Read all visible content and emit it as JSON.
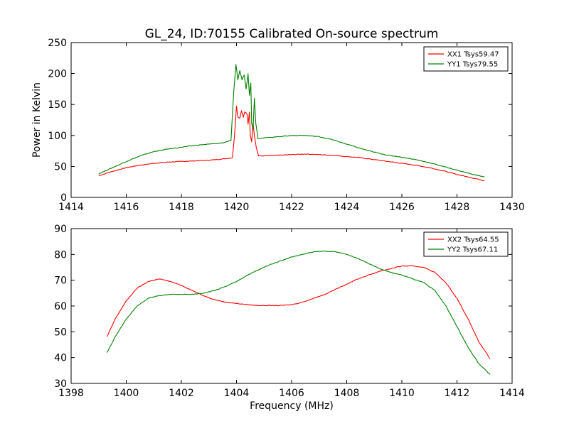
{
  "figure": {
    "title": "GL_24, ID:70155 Calibrated On-source spectrum"
  },
  "chart_data": [
    {
      "type": "line",
      "title": "GL_24, ID:70155 Calibrated On-source spectrum",
      "xlabel": "",
      "ylabel": "Power in Kelvin",
      "xlim": [
        1414,
        1430
      ],
      "ylim": [
        0,
        250
      ],
      "xticks": [
        1414,
        1416,
        1418,
        1420,
        1422,
        1424,
        1426,
        1428,
        1430
      ],
      "yticks": [
        0,
        50,
        100,
        150,
        200,
        250
      ],
      "grid": false,
      "legend_position": "top-right",
      "series": [
        {
          "name": "XX1 Tsys59.47",
          "color": "#ff0000",
          "x": [
            1415.0,
            1415.5,
            1416.0,
            1416.5,
            1417.0,
            1417.5,
            1418.0,
            1418.5,
            1419.0,
            1419.5,
            1419.85,
            1419.93,
            1420.0,
            1420.05,
            1420.12,
            1420.18,
            1420.25,
            1420.3,
            1420.38,
            1420.42,
            1420.47,
            1420.5,
            1420.55,
            1420.6,
            1420.65,
            1420.72,
            1420.8,
            1421.0,
            1421.5,
            1422.0,
            1422.5,
            1423.0,
            1423.5,
            1424.0,
            1424.5,
            1425.0,
            1425.5,
            1426.0,
            1426.5,
            1427.0,
            1427.5,
            1428.0,
            1428.5,
            1429.0
          ],
          "y": [
            35,
            42,
            48,
            52,
            55,
            57,
            58,
            59,
            60,
            62,
            64,
            100,
            148,
            130,
            128,
            140,
            130,
            138,
            135,
            118,
            138,
            100,
            90,
            120,
            100,
            80,
            67,
            67,
            68,
            69,
            70,
            69,
            68,
            66,
            64,
            61,
            58,
            55,
            52,
            48,
            43,
            37,
            32,
            27
          ]
        },
        {
          "name": "YY1 Tsys79.55",
          "color": "#008000",
          "x": [
            1415.0,
            1415.5,
            1416.0,
            1416.5,
            1417.0,
            1417.5,
            1418.0,
            1418.5,
            1419.0,
            1419.5,
            1419.8,
            1419.9,
            1419.98,
            1420.05,
            1420.12,
            1420.2,
            1420.28,
            1420.35,
            1420.42,
            1420.47,
            1420.52,
            1420.55,
            1420.6,
            1420.65,
            1420.7,
            1420.78,
            1421.0,
            1421.5,
            1422.0,
            1422.5,
            1423.0,
            1423.5,
            1424.0,
            1424.5,
            1425.0,
            1425.5,
            1426.0,
            1426.5,
            1427.0,
            1427.5,
            1428.0,
            1428.5,
            1429.0
          ],
          "y": [
            38,
            48,
            58,
            67,
            74,
            78,
            81,
            84,
            86,
            88,
            92,
            170,
            215,
            190,
            205,
            190,
            198,
            175,
            200,
            165,
            185,
            120,
            110,
            160,
            120,
            95,
            96,
            98,
            100,
            100,
            98,
            93,
            86,
            79,
            73,
            68,
            65,
            61,
            56,
            50,
            44,
            38,
            33
          ]
        }
      ]
    },
    {
      "type": "line",
      "title": "",
      "xlabel": "Frequency (MHz)",
      "ylabel": "",
      "xlim": [
        1398,
        1414
      ],
      "ylim": [
        30,
        90
      ],
      "xticks": [
        1398,
        1400,
        1402,
        1404,
        1406,
        1408,
        1410,
        1412,
        1414
      ],
      "yticks": [
        30,
        40,
        50,
        60,
        70,
        80,
        90
      ],
      "grid": false,
      "legend_position": "top-right",
      "series": [
        {
          "name": "XX2 Tsys64.55",
          "color": "#ff0000",
          "x": [
            1399.3,
            1399.6,
            1400.0,
            1400.4,
            1400.8,
            1401.2,
            1401.6,
            1402.0,
            1402.4,
            1402.8,
            1403.2,
            1403.6,
            1404.0,
            1404.4,
            1404.8,
            1405.2,
            1405.6,
            1406.0,
            1406.4,
            1406.8,
            1407.2,
            1407.6,
            1408.0,
            1408.4,
            1408.8,
            1409.2,
            1409.6,
            1410.0,
            1410.4,
            1410.8,
            1411.2,
            1411.6,
            1412.0,
            1412.4,
            1412.8,
            1413.2
          ],
          "y": [
            48,
            55,
            62,
            67,
            69.5,
            70.5,
            69.5,
            68,
            66,
            64,
            62.5,
            61.5,
            61,
            60.5,
            60.2,
            60.2,
            60.2,
            60.5,
            61.5,
            63,
            64.5,
            66.5,
            68.5,
            70.5,
            72,
            73.5,
            74.5,
            75.5,
            75.5,
            75,
            73,
            69,
            63,
            55,
            46,
            39.5
          ]
        },
        {
          "name": "YY2 Tsys67.11",
          "color": "#008000",
          "x": [
            1399.3,
            1399.6,
            1400.0,
            1400.4,
            1400.8,
            1401.2,
            1401.6,
            1402.0,
            1402.4,
            1402.8,
            1403.2,
            1403.6,
            1404.0,
            1404.4,
            1404.8,
            1405.2,
            1405.6,
            1406.0,
            1406.4,
            1406.8,
            1407.2,
            1407.6,
            1408.0,
            1408.4,
            1408.8,
            1409.2,
            1409.6,
            1410.0,
            1410.4,
            1410.8,
            1411.2,
            1411.6,
            1412.0,
            1412.4,
            1412.8,
            1413.2
          ],
          "y": [
            42,
            48,
            55,
            60,
            63,
            64,
            64.5,
            64.5,
            64.5,
            65,
            66,
            67.5,
            69.5,
            72,
            74,
            76,
            77.5,
            79,
            80,
            81,
            81.3,
            81,
            80,
            78.5,
            76.5,
            74.5,
            73,
            72,
            70.5,
            69,
            66,
            60,
            52,
            44,
            37.5,
            33.5
          ]
        }
      ]
    }
  ]
}
